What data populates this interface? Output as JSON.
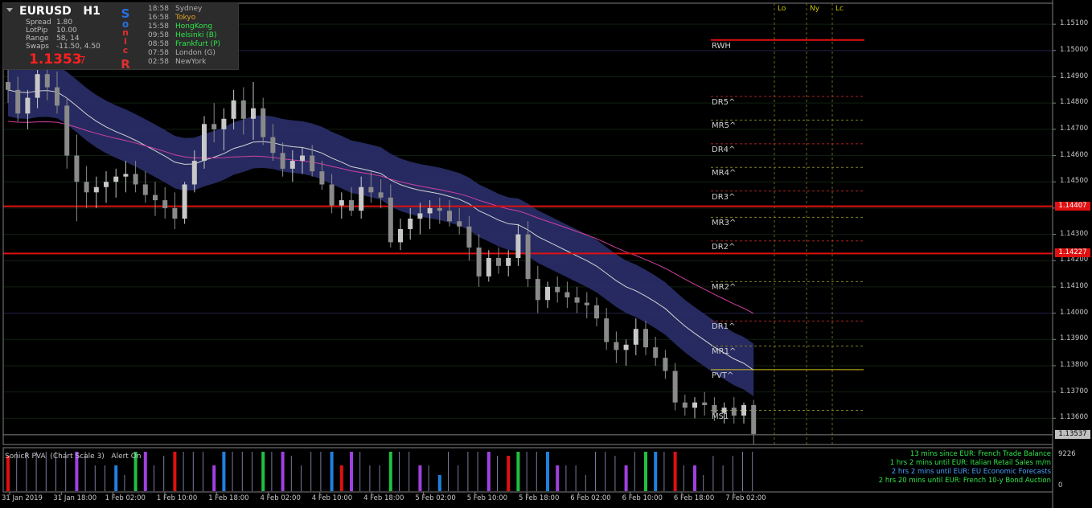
{
  "info_panel": {
    "symbol": "EURUSD",
    "timeframe": "H1",
    "stats": [
      {
        "label": "Spread",
        "value": "1.80"
      },
      {
        "label": "LotPip",
        "value": "10.00"
      },
      {
        "label": "Range",
        "value": "58, 14"
      },
      {
        "label": "Swaps",
        "value": "-11.50, 4.50"
      }
    ],
    "price_main": "1.1353",
    "price_last_digit": "7",
    "sonic_letters": [
      "S",
      "o",
      "n",
      "i",
      "c",
      "R"
    ],
    "sessions": [
      {
        "time": "18:58",
        "city": "Sydney",
        "color": "#b0b0b0"
      },
      {
        "time": "16:58",
        "city": "Tokyo",
        "color": "#e0a020"
      },
      {
        "time": "15:58",
        "city": "HongKong",
        "color": "#2ee64a"
      },
      {
        "time": "09:58",
        "city": "Helsinki  (B)",
        "color": "#2ee64a"
      },
      {
        "time": "08:58",
        "city": "Frankfurt  (P)",
        "color": "#2ee64a"
      },
      {
        "time": "07:58",
        "city": "London  (G)",
        "color": "#b0b0b0"
      },
      {
        "time": "02:58",
        "city": "NewYork",
        "color": "#b0b0b0"
      }
    ]
  },
  "session_columns": [
    "Lo",
    "Ny",
    "Lc"
  ],
  "price_axis": [
    "1.15100",
    "1.15000",
    "1.14900",
    "1.14800",
    "1.14700",
    "1.14600",
    "1.14500",
    "1.14400",
    "1.14300",
    "1.14200",
    "1.14100",
    "1.14000",
    "1.13900",
    "1.13800",
    "1.13700",
    "1.13600"
  ],
  "price_tags": [
    {
      "value": "1.14407",
      "bg": "#e01010",
      "fg": "#ffffff"
    },
    {
      "value": "1.14227",
      "bg": "#e01010",
      "fg": "#ffffff"
    },
    {
      "value": "1.13537",
      "bg": "#c0c0c0",
      "fg": "#000000"
    }
  ],
  "pivot_labels": [
    "RWH",
    "DR5^",
    "MR5^",
    "DR4^",
    "MR4^",
    "DR3^",
    "MR3^",
    "DR2^",
    "MR2^",
    "DR1^",
    "MR1^",
    "PVT^",
    "MS1"
  ],
  "indicator": {
    "title": "SonicR PVA",
    "scale": "(Chart Scale 3)",
    "alert": "Alert On",
    "axis_top": "9226",
    "axis_bottom": "0"
  },
  "news": [
    "13 mins since EUR: French Trade Balance",
    "1 hrs 2 mins until EUR: Italian Retail Sales m/m",
    "2 hrs 2 mins until EUR: EU Economic Forecasts",
    "2 hrs 20 mins until EUR: French 10-y Bond Auction"
  ],
  "time_axis": [
    "31 Jan 2019",
    "31 Jan 18:00",
    "1 Feb 02:00",
    "1 Feb 10:00",
    "1 Feb 18:00",
    "4 Feb 02:00",
    "4 Feb 10:00",
    "4 Feb 18:00",
    "5 Feb 02:00",
    "5 Feb 10:00",
    "5 Feb 18:00",
    "6 Feb 02:00",
    "6 Feb 10:00",
    "6 Feb 18:00",
    "7 Feb 02:00"
  ],
  "chart_data": {
    "type": "candlestick",
    "symbol": "EURUSD",
    "timeframe": "H1",
    "ylim": [
      1.135,
      1.1518
    ],
    "colors": {
      "bull": "#c8c8c8",
      "bear": "#8a8a8a",
      "band": "#2a2f6a",
      "ema": "#d4d4d4",
      "slow_ma": "#d040a0",
      "hline": "#e01010"
    },
    "horizontal_lines": [
      1.14407,
      1.14227
    ],
    "candles": [
      [
        1.1488,
        1.1493,
        1.148,
        1.1485
      ],
      [
        1.1485,
        1.149,
        1.1473,
        1.1476
      ],
      [
        1.1476,
        1.1485,
        1.147,
        1.1482
      ],
      [
        1.1482,
        1.1496,
        1.1478,
        1.1491
      ],
      [
        1.1491,
        1.1498,
        1.1481,
        1.1486
      ],
      [
        1.1486,
        1.1492,
        1.1476,
        1.1479
      ],
      [
        1.1479,
        1.1482,
        1.1455,
        1.146
      ],
      [
        1.146,
        1.1468,
        1.1435,
        1.145
      ],
      [
        1.145,
        1.1456,
        1.144,
        1.1446
      ],
      [
        1.1446,
        1.1452,
        1.144,
        1.1448
      ],
      [
        1.1448,
        1.1454,
        1.1442,
        1.145
      ],
      [
        1.145,
        1.1455,
        1.1444,
        1.1452
      ],
      [
        1.1452,
        1.1458,
        1.1446,
        1.1453
      ],
      [
        1.1453,
        1.1458,
        1.1446,
        1.1449
      ],
      [
        1.1449,
        1.1454,
        1.1442,
        1.1445
      ],
      [
        1.1445,
        1.145,
        1.1437,
        1.1443
      ],
      [
        1.1443,
        1.1448,
        1.1436,
        1.144
      ],
      [
        1.144,
        1.1446,
        1.1432,
        1.1436
      ],
      [
        1.1436,
        1.145,
        1.1434,
        1.1449
      ],
      [
        1.1449,
        1.1462,
        1.1446,
        1.1458
      ],
      [
        1.1458,
        1.1475,
        1.1455,
        1.1472
      ],
      [
        1.1472,
        1.148,
        1.1465,
        1.147
      ],
      [
        1.147,
        1.1478,
        1.1462,
        1.1474
      ],
      [
        1.1474,
        1.1485,
        1.147,
        1.1481
      ],
      [
        1.1481,
        1.1486,
        1.1468,
        1.1474
      ],
      [
        1.1474,
        1.1488,
        1.1466,
        1.1478
      ],
      [
        1.1478,
        1.1482,
        1.1464,
        1.1467
      ],
      [
        1.1467,
        1.1472,
        1.1458,
        1.1461
      ],
      [
        1.1461,
        1.1465,
        1.1452,
        1.1455
      ],
      [
        1.1455,
        1.1462,
        1.145,
        1.1458
      ],
      [
        1.1458,
        1.1463,
        1.1453,
        1.146
      ],
      [
        1.146,
        1.1464,
        1.1452,
        1.1454
      ],
      [
        1.1454,
        1.1458,
        1.1447,
        1.1449
      ],
      [
        1.1449,
        1.1453,
        1.1438,
        1.1441
      ],
      [
        1.1441,
        1.1446,
        1.1436,
        1.1443
      ],
      [
        1.1443,
        1.1448,
        1.1437,
        1.1439
      ],
      [
        1.1439,
        1.1452,
        1.1436,
        1.1448
      ],
      [
        1.1448,
        1.1454,
        1.1442,
        1.1446
      ],
      [
        1.1446,
        1.1451,
        1.144,
        1.1444
      ],
      [
        1.1444,
        1.1449,
        1.1425,
        1.1427
      ],
      [
        1.1427,
        1.1436,
        1.1424,
        1.1432
      ],
      [
        1.1432,
        1.144,
        1.1428,
        1.1436
      ],
      [
        1.1436,
        1.1442,
        1.143,
        1.1438
      ],
      [
        1.1438,
        1.1443,
        1.1432,
        1.144
      ],
      [
        1.144,
        1.1444,
        1.1434,
        1.1439
      ],
      [
        1.1439,
        1.1443,
        1.1433,
        1.1435
      ],
      [
        1.1435,
        1.144,
        1.143,
        1.1433
      ],
      [
        1.1433,
        1.1437,
        1.142,
        1.1425
      ],
      [
        1.1425,
        1.143,
        1.141,
        1.1414
      ],
      [
        1.1414,
        1.1424,
        1.1412,
        1.1421
      ],
      [
        1.1421,
        1.1425,
        1.1415,
        1.1418
      ],
      [
        1.1418,
        1.1424,
        1.1414,
        1.1421
      ],
      [
        1.1421,
        1.1434,
        1.1418,
        1.143
      ],
      [
        1.143,
        1.1435,
        1.141,
        1.1413
      ],
      [
        1.1413,
        1.1418,
        1.14,
        1.1405
      ],
      [
        1.1405,
        1.1412,
        1.1402,
        1.141
      ],
      [
        1.141,
        1.1414,
        1.1404,
        1.1408
      ],
      [
        1.1408,
        1.1412,
        1.1402,
        1.1406
      ],
      [
        1.1406,
        1.141,
        1.14,
        1.1404
      ],
      [
        1.1404,
        1.1408,
        1.1398,
        1.1403
      ],
      [
        1.1403,
        1.1406,
        1.1395,
        1.1398
      ],
      [
        1.1398,
        1.1402,
        1.1386,
        1.1389
      ],
      [
        1.1389,
        1.1393,
        1.1381,
        1.1386
      ],
      [
        1.1386,
        1.139,
        1.138,
        1.1388
      ],
      [
        1.1388,
        1.1398,
        1.1384,
        1.1394
      ],
      [
        1.1394,
        1.1397,
        1.1384,
        1.1387
      ],
      [
        1.1387,
        1.1391,
        1.138,
        1.1383
      ],
      [
        1.1383,
        1.1386,
        1.1375,
        1.1378
      ],
      [
        1.1378,
        1.1381,
        1.1363,
        1.1366
      ],
      [
        1.1366,
        1.1369,
        1.1361,
        1.1364
      ],
      [
        1.1364,
        1.1368,
        1.136,
        1.1366
      ],
      [
        1.1366,
        1.137,
        1.1361,
        1.1365
      ],
      [
        1.1365,
        1.1368,
        1.1359,
        1.1362
      ],
      [
        1.1362,
        1.1366,
        1.1358,
        1.1364
      ],
      [
        1.1364,
        1.1368,
        1.1358,
        1.1361
      ],
      [
        1.1361,
        1.1366,
        1.1358,
        1.1365
      ],
      [
        1.1365,
        1.1367,
        1.135,
        1.1354
      ]
    ]
  }
}
